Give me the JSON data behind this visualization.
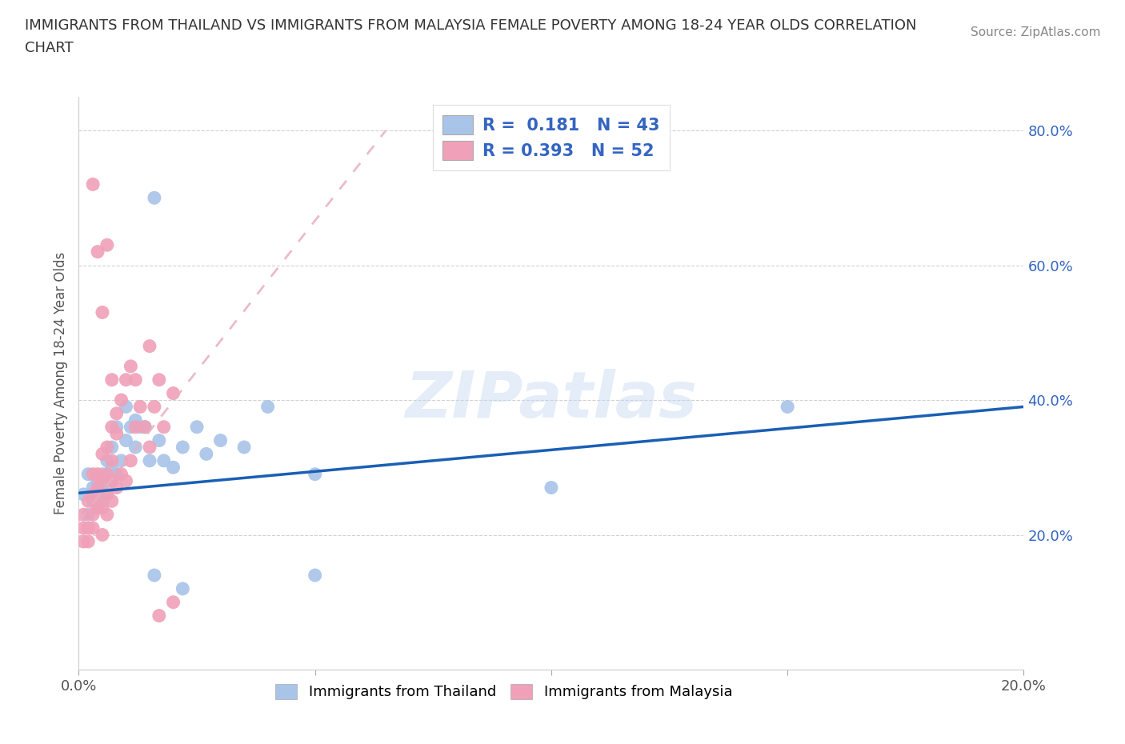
{
  "title_line1": "IMMIGRANTS FROM THAILAND VS IMMIGRANTS FROM MALAYSIA FEMALE POVERTY AMONG 18-24 YEAR OLDS CORRELATION",
  "title_line2": "CHART",
  "source": "Source: ZipAtlas.com",
  "ylabel": "Female Poverty Among 18-24 Year Olds",
  "xmin": 0.0,
  "xmax": 0.2,
  "ymin": 0.0,
  "ymax": 0.85,
  "x_ticks": [
    0.0,
    0.05,
    0.1,
    0.15,
    0.2
  ],
  "x_tick_labels": [
    "0.0%",
    "",
    "",
    "",
    "20.0%"
  ],
  "y_ticks": [
    0.0,
    0.2,
    0.4,
    0.6,
    0.8
  ],
  "y_tick_labels": [
    "",
    "20.0%",
    "40.0%",
    "60.0%",
    "80.0%"
  ],
  "thailand_color": "#a8c4e8",
  "malaysia_color": "#f0a0b8",
  "thailand_line_color": "#1a5fb4",
  "malaysia_trend_color": "#e8b0c0",
  "R_thailand": 0.181,
  "N_thailand": 43,
  "R_malaysia": 0.393,
  "N_malaysia": 52,
  "blue_text_color": "#3465c0",
  "watermark": "ZIPatlas",
  "th_x": [
    0.001,
    0.002,
    0.002,
    0.003,
    0.003,
    0.004,
    0.004,
    0.005,
    0.005,
    0.005,
    0.006,
    0.006,
    0.006,
    0.007,
    0.007,
    0.007,
    0.008,
    0.008,
    0.009,
    0.01,
    0.01,
    0.011,
    0.012,
    0.012,
    0.013,
    0.014,
    0.015,
    0.016,
    0.017,
    0.018,
    0.02,
    0.022,
    0.025,
    0.027,
    0.03,
    0.035,
    0.04,
    0.016,
    0.05,
    0.05,
    0.022,
    0.1,
    0.15
  ],
  "th_y": [
    0.26,
    0.23,
    0.29,
    0.25,
    0.27,
    0.24,
    0.28,
    0.25,
    0.27,
    0.29,
    0.26,
    0.31,
    0.28,
    0.28,
    0.3,
    0.33,
    0.29,
    0.36,
    0.31,
    0.34,
    0.39,
    0.36,
    0.33,
    0.37,
    0.36,
    0.36,
    0.31,
    0.7,
    0.34,
    0.31,
    0.3,
    0.33,
    0.36,
    0.32,
    0.34,
    0.33,
    0.39,
    0.14,
    0.29,
    0.14,
    0.12,
    0.27,
    0.39
  ],
  "ml_x": [
    0.001,
    0.001,
    0.001,
    0.002,
    0.002,
    0.002,
    0.003,
    0.003,
    0.003,
    0.003,
    0.004,
    0.004,
    0.004,
    0.004,
    0.005,
    0.005,
    0.005,
    0.005,
    0.006,
    0.006,
    0.006,
    0.006,
    0.007,
    0.007,
    0.007,
    0.007,
    0.008,
    0.008,
    0.008,
    0.009,
    0.009,
    0.01,
    0.01,
    0.011,
    0.011,
    0.012,
    0.013,
    0.014,
    0.015,
    0.016,
    0.017,
    0.018,
    0.02,
    0.003,
    0.004,
    0.005,
    0.006,
    0.007,
    0.012,
    0.015,
    0.017,
    0.02
  ],
  "ml_y": [
    0.21,
    0.23,
    0.19,
    0.19,
    0.25,
    0.21,
    0.21,
    0.23,
    0.26,
    0.29,
    0.24,
    0.27,
    0.29,
    0.25,
    0.2,
    0.24,
    0.28,
    0.32,
    0.23,
    0.26,
    0.29,
    0.33,
    0.25,
    0.28,
    0.31,
    0.36,
    0.27,
    0.35,
    0.38,
    0.29,
    0.4,
    0.28,
    0.43,
    0.31,
    0.45,
    0.36,
    0.39,
    0.36,
    0.33,
    0.39,
    0.43,
    0.36,
    0.41,
    0.72,
    0.62,
    0.53,
    0.63,
    0.43,
    0.43,
    0.48,
    0.08,
    0.1
  ]
}
